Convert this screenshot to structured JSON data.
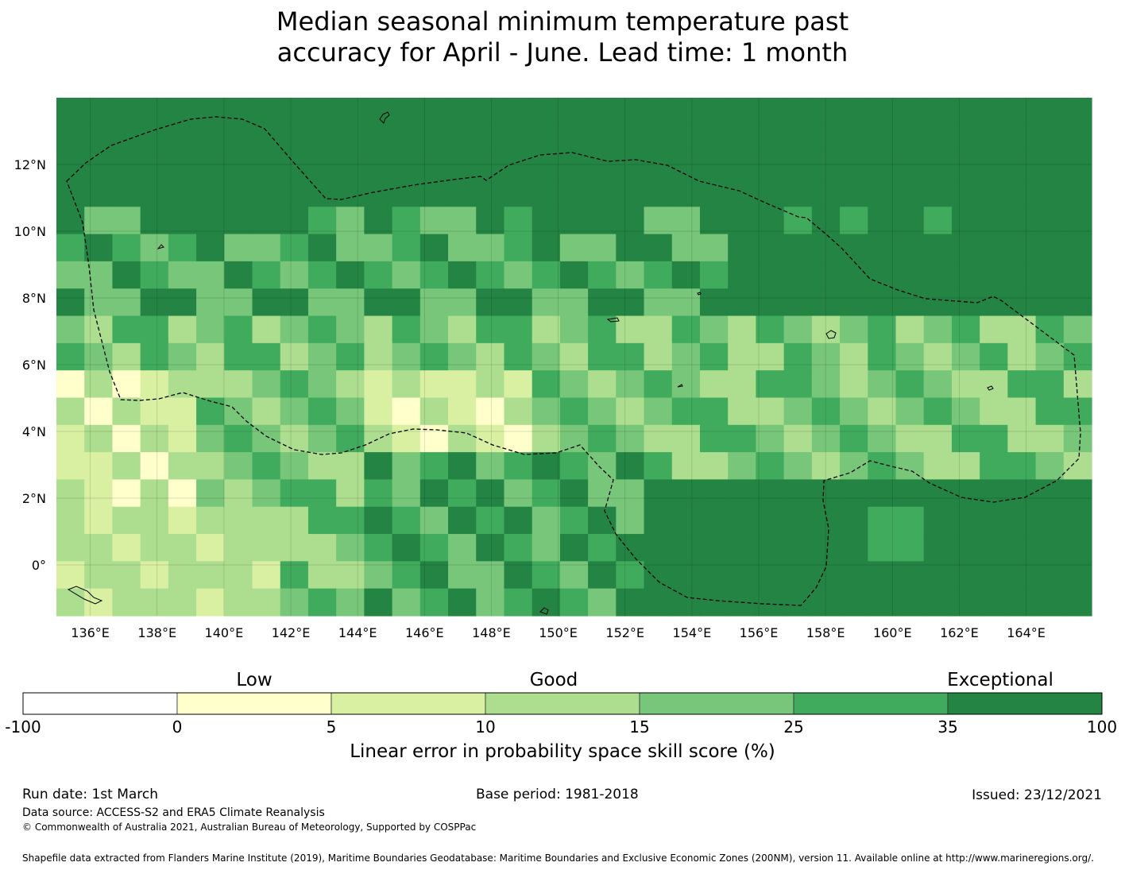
{
  "title": {
    "line1": "Median seasonal minimum temperature past",
    "line2": "accuracy for April - June. Lead time: 1 month"
  },
  "map": {
    "lon_range": [
      135,
      166
    ],
    "lat_range": [
      -1.5,
      14
    ],
    "x_ticks": [
      "136°E",
      "138°E",
      "140°E",
      "142°E",
      "144°E",
      "146°E",
      "148°E",
      "150°E",
      "152°E",
      "154°E",
      "156°E",
      "158°E",
      "160°E",
      "162°E",
      "164°E"
    ],
    "y_ticks": [
      "12°N",
      "10°N",
      "8°N",
      "6°N",
      "4°N",
      "2°N",
      "0°"
    ],
    "eez_boundary": "dashed",
    "grid": true
  },
  "legend": {
    "categories": [
      "Low",
      "Good",
      "Exceptional"
    ],
    "bins": [
      {
        "from": "-100",
        "to": "0",
        "color": "#ffffff"
      },
      {
        "from": "0",
        "to": "5",
        "color": "#ffffcc"
      },
      {
        "from": "5",
        "to": "10",
        "color": "#d9f0a3"
      },
      {
        "from": "10",
        "to": "15",
        "color": "#addd8e"
      },
      {
        "from": "15",
        "to": "25",
        "color": "#78c679"
      },
      {
        "from": "25",
        "to": "35",
        "color": "#41ab5d"
      },
      {
        "from": "35",
        "to": "100",
        "color": "#238443"
      }
    ],
    "ticks": [
      "-100",
      "0",
      "5",
      "10",
      "15",
      "25",
      "35",
      "100"
    ],
    "label": "Linear error in probability space skill score (%)"
  },
  "footer": {
    "run_date": "Run date: 1st March",
    "base_period": "Base period: 1981-2018",
    "issued": "Issued: 23/12/2021",
    "data_source": "Data source: ACCESS-S2 and ERA5 Climate Reanalysis",
    "copyright": "© Commonwealth of Australia 2021, Australian Bureau of Meteorology, Supported by COSPPac",
    "shapefile": "Shapefile data extracted from Flanders Marine Institute (2019), Maritime Boundaries Geodatabase: Maritime Boundaries and Exclusive Economic Zones (200NM), version 11. Available online at http://www.marineregions.org/."
  }
}
